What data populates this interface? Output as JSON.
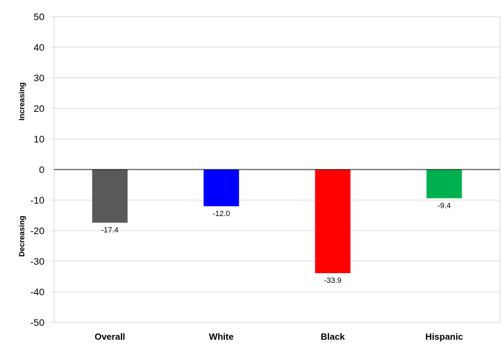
{
  "chart_data": {
    "type": "bar",
    "categories": [
      "Overall",
      "White",
      "Black",
      "Hispanic"
    ],
    "values": [
      -17.4,
      -12.0,
      -33.9,
      -9.4
    ],
    "data_labels": [
      "-17.4",
      "-12.0",
      "-33.9",
      "-9.4"
    ],
    "colors": [
      "#595959",
      "#0000ff",
      "#ff0000",
      "#00b050"
    ],
    "ylim": [
      -50,
      50
    ],
    "yticks": [
      50,
      40,
      30,
      20,
      10,
      0,
      -10,
      -20,
      -30,
      -40,
      -50
    ],
    "ytick_labels": [
      "50",
      "40",
      "30",
      "20",
      "10",
      "0",
      "-10",
      "-20",
      "-30",
      "-40",
      "-50"
    ],
    "ylabel_positive": "Increasing",
    "ylabel_negative": "Decreasing",
    "grid": true,
    "legend": "none"
  }
}
